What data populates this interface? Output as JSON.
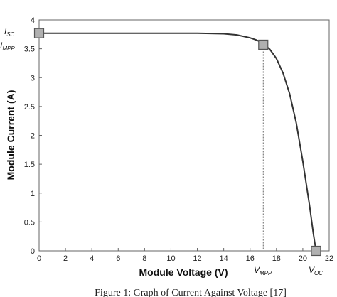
{
  "chart_data": {
    "type": "line",
    "xlabel": "Module Voltage (V)",
    "ylabel": "Module Current (A)",
    "xlim": [
      0,
      22
    ],
    "ylim": [
      0,
      4
    ],
    "xticks": [
      "0",
      "2",
      "4",
      "6",
      "8",
      "10",
      "12",
      "14",
      "16",
      "18",
      "20",
      "22"
    ],
    "yticks": [
      "0",
      "0.5",
      "1",
      "1.5",
      "2",
      "2.5",
      "3",
      "3.5",
      "4"
    ],
    "grid": false,
    "series": [
      {
        "x": [
          0,
          2,
          4,
          6,
          8,
          10,
          12,
          14,
          15,
          16,
          16.5,
          17,
          17.5,
          18,
          18.5,
          19,
          19.5,
          20,
          20.5,
          20.8,
          21
        ],
        "y": [
          3.77,
          3.77,
          3.77,
          3.77,
          3.77,
          3.77,
          3.77,
          3.76,
          3.74,
          3.69,
          3.65,
          3.59,
          3.49,
          3.33,
          3.08,
          2.72,
          2.22,
          1.55,
          0.8,
          0.3,
          0.0
        ],
        "color": "#333333"
      }
    ],
    "markers": [
      {
        "x": 0,
        "y": 3.77
      },
      {
        "x": 17,
        "y": 3.57
      },
      {
        "x": 21,
        "y": 0
      }
    ],
    "reference_lines": {
      "mpp_voltage": 17,
      "mpp_current": 3.6
    },
    "annotations": {
      "isc": {
        "main": "I",
        "sub": "SC"
      },
      "impp": {
        "main": "I",
        "sub": "MPP"
      },
      "vmpp": {
        "main": "V",
        "sub": "MPP"
      },
      "voc": {
        "main": "V",
        "sub": "OC"
      }
    }
  },
  "caption": "Figure 1: Graph of Current Against Voltage [17]"
}
